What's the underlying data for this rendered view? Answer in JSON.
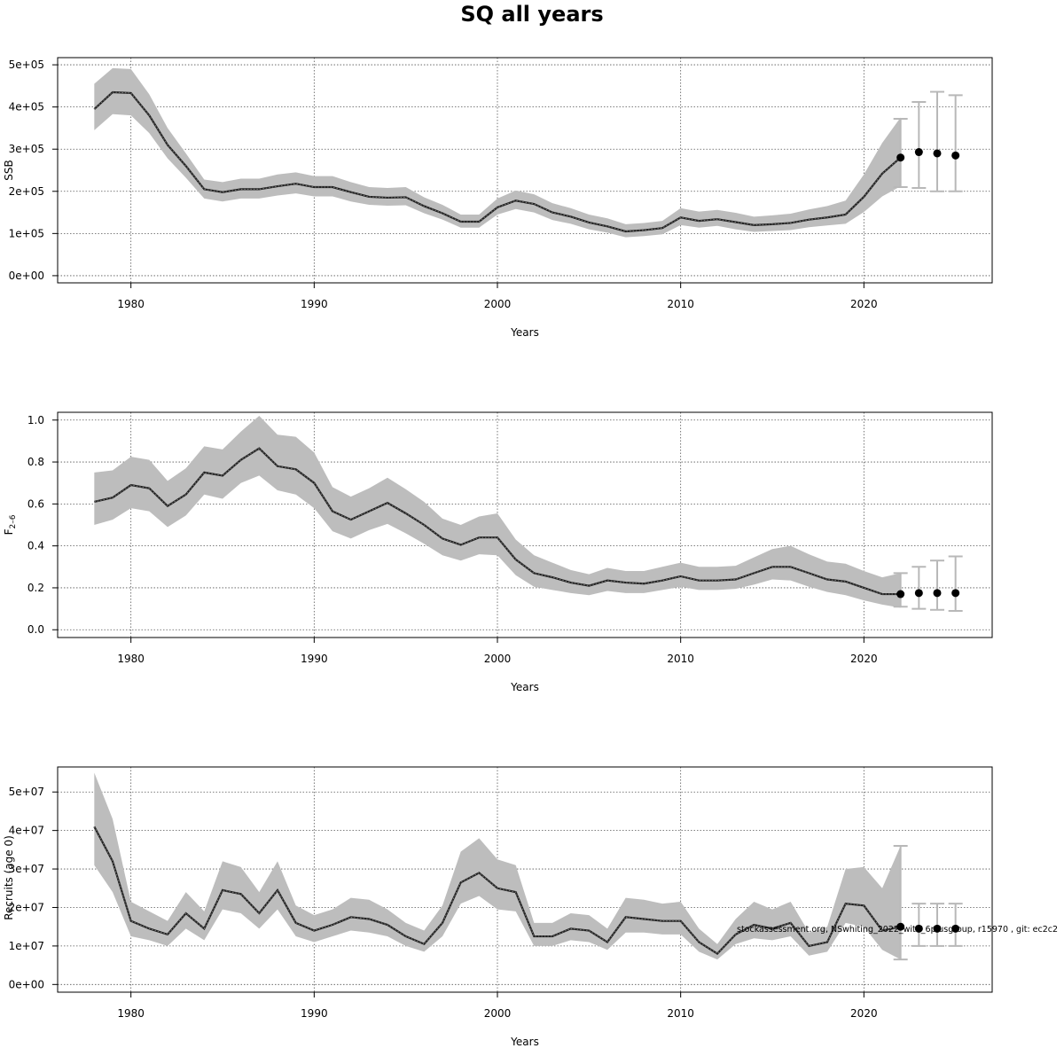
{
  "title": "SQ all years",
  "footnote": "stockassessment.org, NSwhiting_2022_with_6plusgroup, r15970 , git: ec2c2",
  "colors": {
    "band": "#bdbdbd",
    "line": "#222222",
    "errorbar": "#b8b8b8",
    "point": "#000000",
    "grid": "#555555"
  },
  "chart_data": [
    {
      "type": "line",
      "ylabel": "SSB",
      "xlabel": "Years",
      "xlim": [
        1976,
        2027
      ],
      "ylim": [
        -17000,
        517000
      ],
      "yticks": [
        0,
        100000,
        200000,
        300000,
        400000,
        500000
      ],
      "ytick_labels": [
        "0e+00",
        "1e+05",
        "2e+05",
        "3e+05",
        "4e+05",
        "5e+05"
      ],
      "xticks": [
        1980,
        1990,
        2000,
        2010,
        2020
      ],
      "xtick_labels": [
        "1980",
        "1990",
        "2000",
        "2010",
        "2020"
      ],
      "grid": true,
      "x": [
        1978,
        1979,
        1980,
        1981,
        1982,
        1983,
        1984,
        1985,
        1986,
        1987,
        1988,
        1989,
        1990,
        1991,
        1992,
        1993,
        1994,
        1995,
        1996,
        1997,
        1998,
        1999,
        2000,
        2001,
        2002,
        2003,
        2004,
        2005,
        2006,
        2007,
        2008,
        2009,
        2010,
        2011,
        2012,
        2013,
        2014,
        2015,
        2016,
        2017,
        2018,
        2019,
        2020,
        2021,
        2022
      ],
      "estimate": [
        395000,
        435000,
        433000,
        380000,
        310000,
        260000,
        205000,
        198000,
        205000,
        205000,
        212000,
        218000,
        210000,
        210000,
        198000,
        187000,
        185000,
        186000,
        165000,
        148000,
        128000,
        128000,
        162000,
        178000,
        170000,
        150000,
        140000,
        126000,
        117000,
        105000,
        108000,
        113000,
        138000,
        130000,
        134000,
        127000,
        120000,
        122000,
        125000,
        133000,
        138000,
        145000,
        187000,
        242000,
        280000
      ],
      "lower": [
        345000,
        383000,
        380000,
        338000,
        278000,
        232000,
        183000,
        176000,
        183000,
        183000,
        190000,
        195000,
        188000,
        188000,
        176000,
        168000,
        166000,
        167000,
        148000,
        133000,
        114000,
        114000,
        145000,
        158000,
        150000,
        132000,
        123000,
        110000,
        102000,
        91000,
        94000,
        98000,
        120000,
        114000,
        118000,
        110000,
        104000,
        106000,
        108000,
        115000,
        119000,
        123000,
        151000,
        188000,
        212000
      ],
      "upper": [
        455000,
        492000,
        490000,
        430000,
        350000,
        290000,
        228000,
        222000,
        230000,
        230000,
        240000,
        245000,
        236000,
        236000,
        222000,
        210000,
        208000,
        210000,
        186000,
        168000,
        145000,
        145000,
        183000,
        202000,
        193000,
        172000,
        160000,
        145000,
        136000,
        122000,
        125000,
        130000,
        160000,
        152000,
        156000,
        149000,
        140000,
        143000,
        147000,
        157000,
        165000,
        178000,
        240000,
        315000,
        375000
      ],
      "forecast": {
        "x": [
          2022,
          2023,
          2024,
          2025
        ],
        "median": [
          280000,
          293000,
          290000,
          285000
        ],
        "lower": [
          210000,
          208000,
          200000,
          200000
        ],
        "upper": [
          372000,
          412000,
          436000,
          428000
        ]
      }
    },
    {
      "type": "line",
      "ylabel": "F2-6",
      "xlabel": "Years",
      "xlim": [
        1976,
        2027
      ],
      "ylim": [
        -0.037,
        1.037
      ],
      "yticks": [
        0,
        0.2,
        0.4,
        0.6,
        0.8,
        1.0
      ],
      "ytick_labels": [
        "0.0",
        "0.2",
        "0.4",
        "0.6",
        "0.8",
        "1.0"
      ],
      "xticks": [
        1980,
        1990,
        2000,
        2010,
        2020
      ],
      "xtick_labels": [
        "1980",
        "1990",
        "2000",
        "2010",
        "2020"
      ],
      "grid": true,
      "x": [
        1978,
        1979,
        1980,
        1981,
        1982,
        1983,
        1984,
        1985,
        1986,
        1987,
        1988,
        1989,
        1990,
        1991,
        1992,
        1993,
        1994,
        1995,
        1996,
        1997,
        1998,
        1999,
        2000,
        2001,
        2002,
        2003,
        2004,
        2005,
        2006,
        2007,
        2008,
        2009,
        2010,
        2011,
        2012,
        2013,
        2014,
        2015,
        2016,
        2017,
        2018,
        2019,
        2020,
        2021,
        2022
      ],
      "estimate": [
        0.61,
        0.63,
        0.69,
        0.675,
        0.59,
        0.645,
        0.75,
        0.735,
        0.81,
        0.865,
        0.78,
        0.765,
        0.7,
        0.565,
        0.525,
        0.565,
        0.605,
        0.555,
        0.5,
        0.435,
        0.405,
        0.44,
        0.44,
        0.335,
        0.27,
        0.25,
        0.225,
        0.21,
        0.235,
        0.225,
        0.22,
        0.235,
        0.255,
        0.235,
        0.235,
        0.24,
        0.27,
        0.3,
        0.3,
        0.27,
        0.24,
        0.23,
        0.2,
        0.17,
        0.17
      ],
      "lower": [
        0.5,
        0.525,
        0.58,
        0.565,
        0.49,
        0.545,
        0.645,
        0.625,
        0.7,
        0.735,
        0.665,
        0.645,
        0.58,
        0.47,
        0.435,
        0.475,
        0.505,
        0.46,
        0.41,
        0.355,
        0.33,
        0.36,
        0.355,
        0.26,
        0.205,
        0.19,
        0.175,
        0.165,
        0.185,
        0.175,
        0.175,
        0.19,
        0.205,
        0.19,
        0.19,
        0.195,
        0.215,
        0.24,
        0.235,
        0.205,
        0.18,
        0.165,
        0.14,
        0.12,
        0.105
      ],
      "upper": [
        0.75,
        0.76,
        0.825,
        0.81,
        0.71,
        0.77,
        0.875,
        0.86,
        0.945,
        1.02,
        0.93,
        0.92,
        0.845,
        0.68,
        0.635,
        0.675,
        0.725,
        0.67,
        0.61,
        0.53,
        0.5,
        0.54,
        0.555,
        0.43,
        0.355,
        0.32,
        0.285,
        0.265,
        0.295,
        0.28,
        0.28,
        0.3,
        0.32,
        0.3,
        0.3,
        0.305,
        0.345,
        0.385,
        0.4,
        0.36,
        0.325,
        0.315,
        0.28,
        0.25,
        0.27
      ],
      "forecast": {
        "x": [
          2022,
          2023,
          2024,
          2025
        ],
        "median": [
          0.17,
          0.175,
          0.175,
          0.175
        ],
        "lower": [
          0.11,
          0.1,
          0.095,
          0.09
        ],
        "upper": [
          0.27,
          0.3,
          0.33,
          0.35
        ]
      }
    },
    {
      "type": "line",
      "ylabel": "Recruits (age 0)",
      "xlabel": "Years",
      "xlim": [
        1976,
        2027
      ],
      "ylim": [
        -2000000,
        56500000
      ],
      "yticks": [
        0,
        10000000,
        20000000,
        30000000,
        40000000,
        50000000
      ],
      "ytick_labels": [
        "0e+00",
        "1e+07",
        "2e+07",
        "3e+07",
        "4e+07",
        "5e+07"
      ],
      "xticks": [
        1980,
        1990,
        2000,
        2010,
        2020
      ],
      "xtick_labels": [
        "1980",
        "1990",
        "2000",
        "2010",
        "2020"
      ],
      "grid": true,
      "x": [
        1978,
        1979,
        1980,
        1981,
        1982,
        1983,
        1984,
        1985,
        1986,
        1987,
        1988,
        1989,
        1990,
        1991,
        1992,
        1993,
        1994,
        1995,
        1996,
        1997,
        1998,
        1999,
        2000,
        2001,
        2002,
        2003,
        2004,
        2005,
        2006,
        2007,
        2008,
        2009,
        2010,
        2011,
        2012,
        2013,
        2014,
        2015,
        2016,
        2017,
        2018,
        2019,
        2020,
        2021,
        2022
      ],
      "estimate": [
        41000000,
        32000000,
        16500000,
        14500000,
        13000000,
        18500000,
        14500000,
        24500000,
        23500000,
        18500000,
        24500000,
        16000000,
        14000000,
        15500000,
        17500000,
        17000000,
        15500000,
        12500000,
        10500000,
        16000000,
        26500000,
        29000000,
        25000000,
        24000000,
        12500000,
        12500000,
        14500000,
        14000000,
        11000000,
        17500000,
        17000000,
        16500000,
        16500000,
        11000000,
        8000000,
        13000000,
        15500000,
        14500000,
        16000000,
        10000000,
        11000000,
        21000000,
        20500000,
        14000000,
        15000000
      ],
      "lower": [
        31000000,
        24000000,
        12500000,
        11500000,
        10000000,
        14500000,
        11500000,
        19500000,
        18500000,
        14500000,
        19500000,
        12500000,
        11000000,
        12500000,
        14000000,
        13500000,
        12500000,
        10000000,
        8500000,
        12500000,
        21000000,
        23000000,
        19500000,
        19000000,
        10000000,
        10000000,
        11500000,
        11000000,
        9000000,
        13500000,
        13500000,
        13000000,
        13000000,
        8500000,
        6500000,
        10500000,
        12000000,
        11500000,
        12500000,
        7500000,
        8500000,
        16000000,
        15000000,
        9000000,
        6500000
      ],
      "upper": [
        55000000,
        43000000,
        21500000,
        19000000,
        16500000,
        24000000,
        19000000,
        32000000,
        30500000,
        24000000,
        32000000,
        20500000,
        18000000,
        19500000,
        22500000,
        22000000,
        19500000,
        16000000,
        14000000,
        20500000,
        34500000,
        38000000,
        32500000,
        31000000,
        16000000,
        16000000,
        18500000,
        18000000,
        14500000,
        22500000,
        22000000,
        21000000,
        21500000,
        14500000,
        10500000,
        17000000,
        21500000,
        19500000,
        21500000,
        13500000,
        15000000,
        30000000,
        30500000,
        25000000,
        36000000
      ],
      "forecast": {
        "x": [
          2022,
          2023,
          2024,
          2025
        ],
        "median": [
          15000000,
          14500000,
          14500000,
          14500000
        ],
        "lower": [
          6500000,
          10000000,
          10000000,
          10000000
        ],
        "upper": [
          36000000,
          21000000,
          21000000,
          21000000
        ]
      }
    }
  ]
}
